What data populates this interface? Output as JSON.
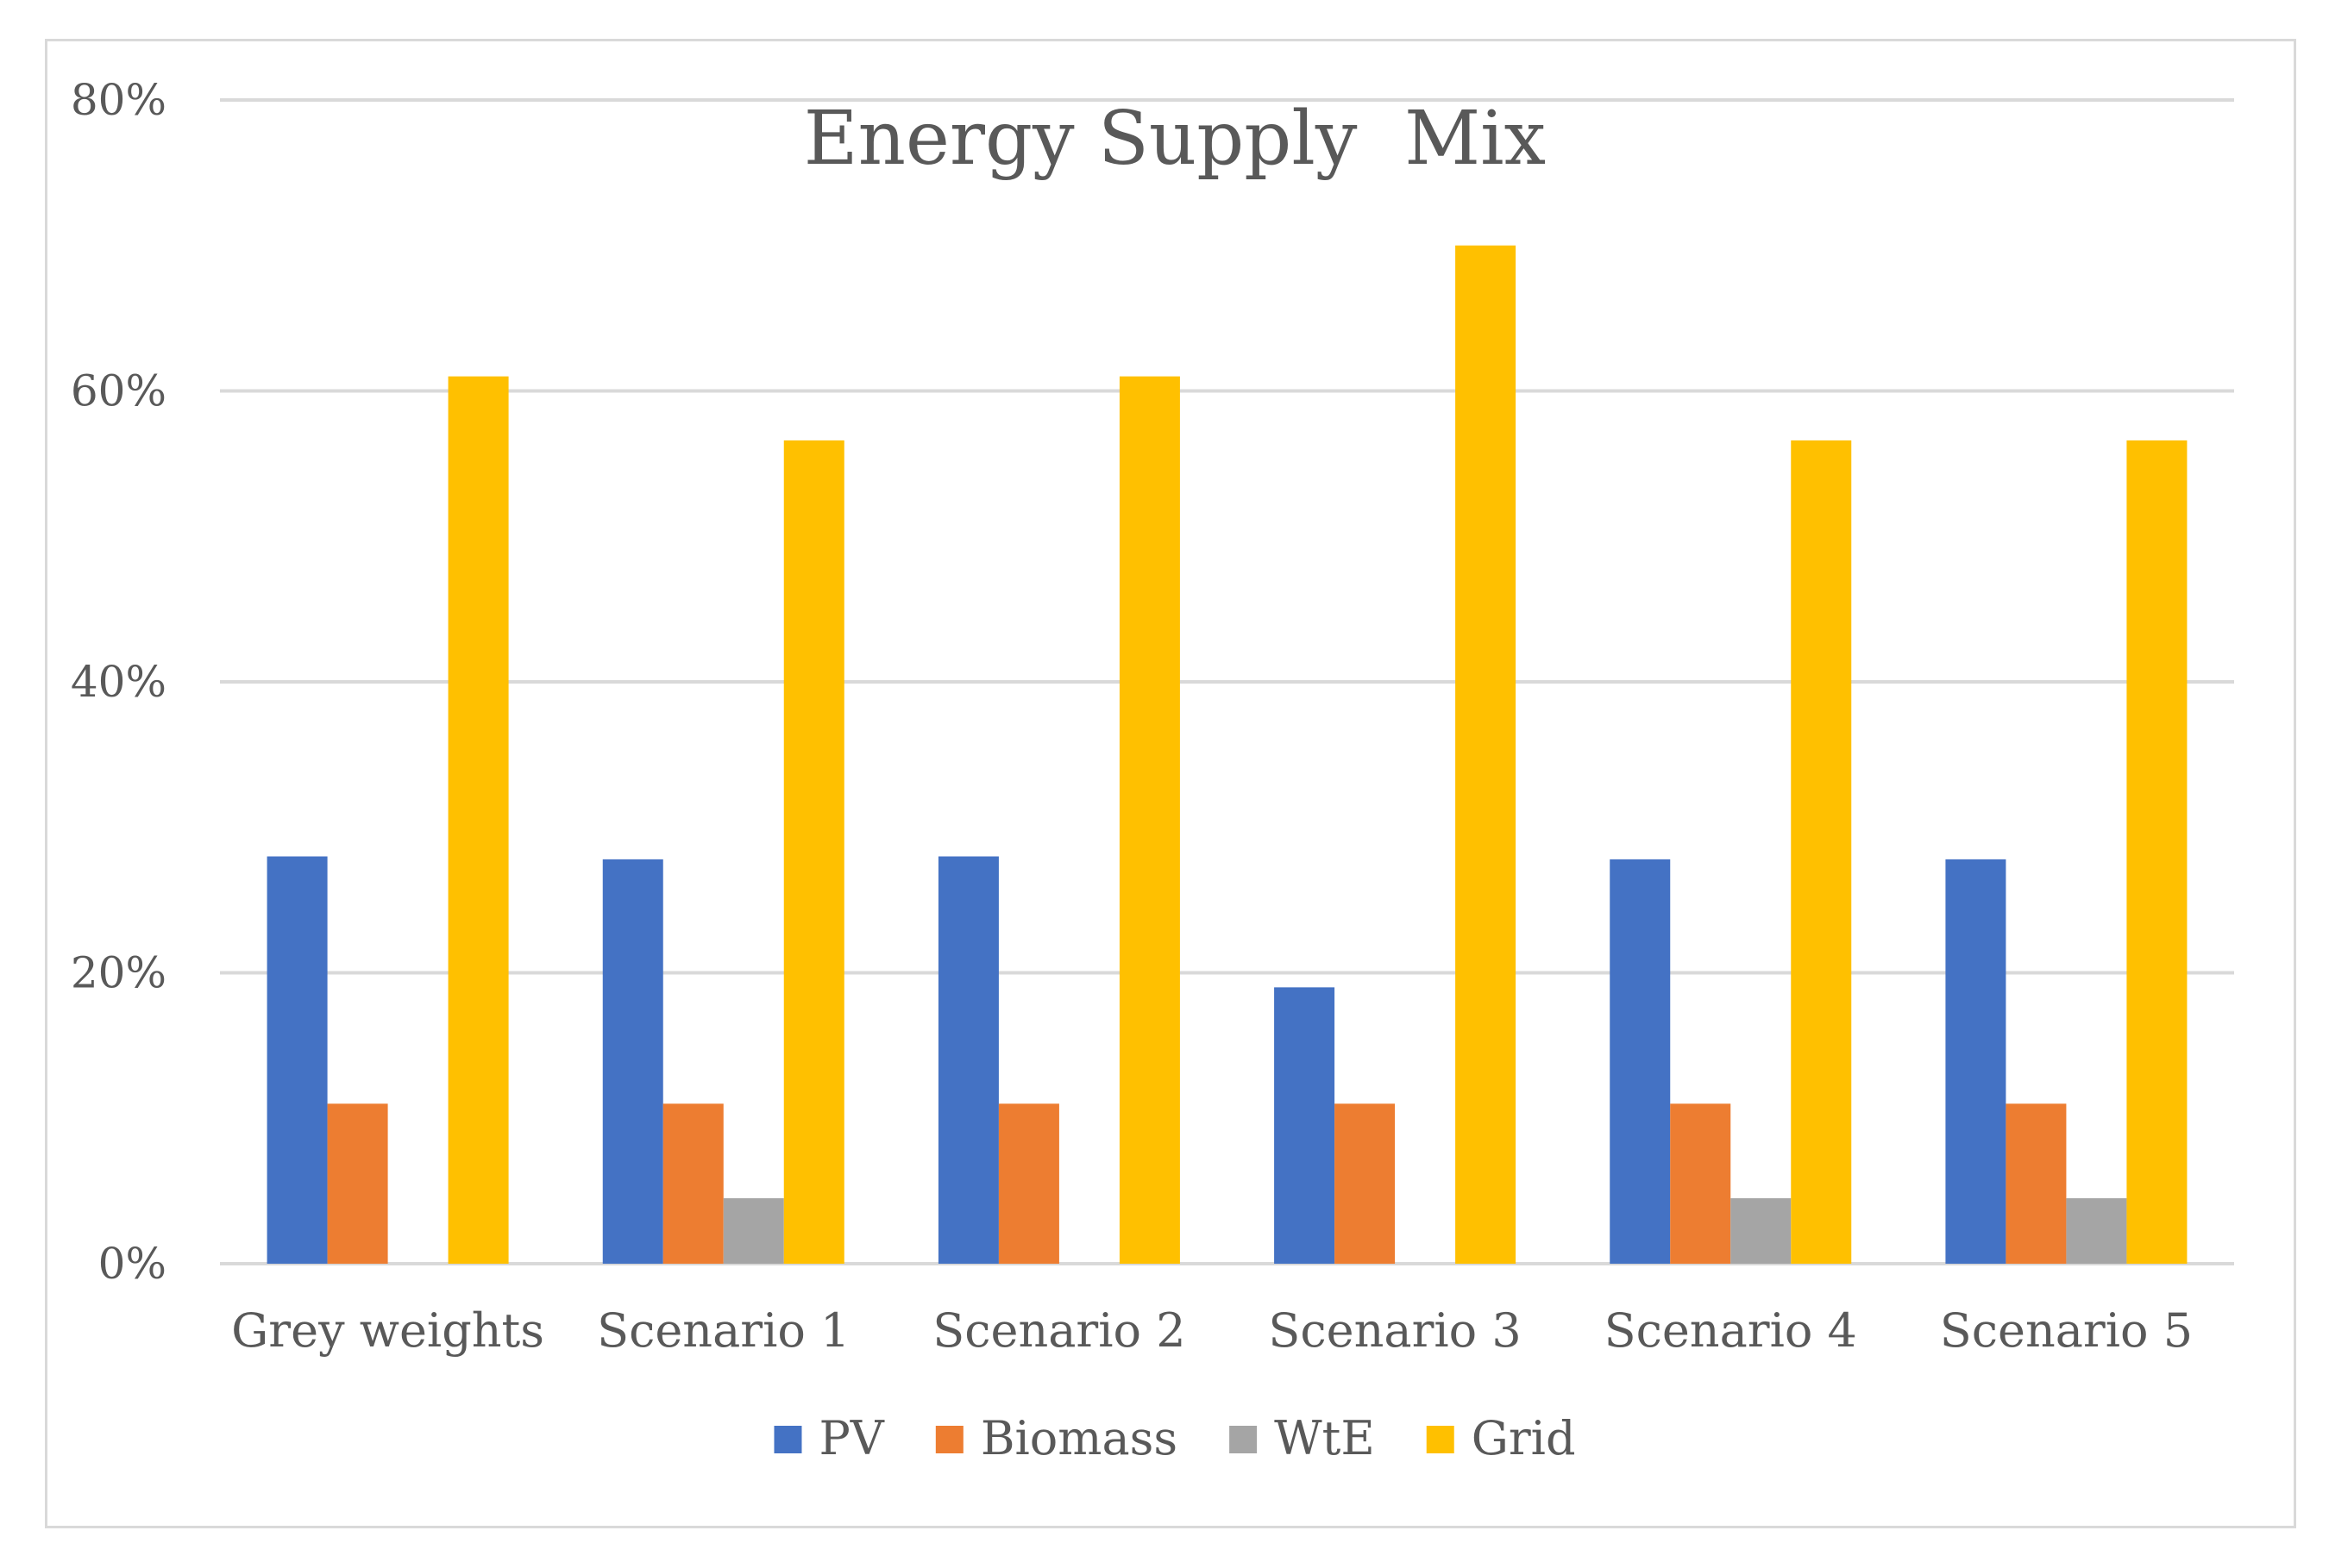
{
  "chart_data": {
    "type": "bar",
    "title": "Energy Supply  Mix",
    "xlabel": "",
    "ylabel": "",
    "categories": [
      "Grey weights",
      "Scenario 1",
      "Scenario 2",
      "Scenario 3",
      "Scenario 4",
      "Scenario 5"
    ],
    "series": [
      {
        "name": "PV",
        "color": "#4472c4",
        "values": [
          0.28,
          0.278,
          0.28,
          0.19,
          0.278,
          0.278
        ]
      },
      {
        "name": "Biomass",
        "color": "#ed7d31",
        "values": [
          0.11,
          0.11,
          0.11,
          0.11,
          0.11,
          0.11
        ]
      },
      {
        "name": "WtE",
        "color": "#a5a5a5",
        "values": [
          0,
          0.045,
          0,
          0,
          0.045,
          0.045
        ]
      },
      {
        "name": "Grid",
        "color": "#ffc000",
        "values": [
          0.61,
          0.566,
          0.61,
          0.7,
          0.566,
          0.566
        ]
      }
    ],
    "ylim": [
      0,
      0.8
    ],
    "yticks": [
      0,
      0.2,
      0.4,
      0.6,
      0.8
    ],
    "ytick_labels": [
      "0%",
      "20%",
      "40%",
      "60%",
      "80%"
    ],
    "grid": true,
    "legend_position": "bottom"
  }
}
